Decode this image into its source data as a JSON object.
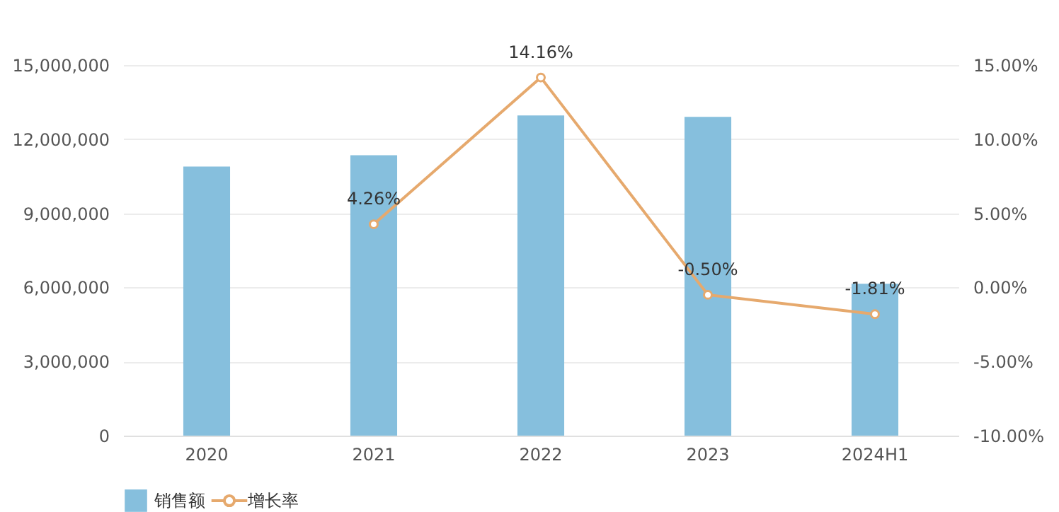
{
  "chart_data": {
    "type": "bar",
    "categories": [
      "2020",
      "2021",
      "2022",
      "2023",
      "2024H1"
    ],
    "series": [
      {
        "name": "销售额",
        "color": "#86bfdd",
        "values": [
          10890000,
          11350000,
          12960000,
          12900000,
          6150000
        ]
      },
      {
        "name": "增长率",
        "type": "line",
        "axis": "y2",
        "color": "#e6a96d",
        "values": [
          null,
          4.26,
          14.16,
          -0.5,
          -1.81
        ],
        "value_labels": [
          null,
          "4.26%",
          "14.16%",
          "-0.50%",
          "-1.81%"
        ]
      }
    ],
    "ylim": [
      0,
      15000000
    ],
    "yticks": [
      {
        "value": 0,
        "label": "0"
      },
      {
        "value": 3000000,
        "label": "3,000,000"
      },
      {
        "value": 6000000,
        "label": "6,000,000"
      },
      {
        "value": 9000000,
        "label": "9,000,000"
      },
      {
        "value": 12000000,
        "label": "12,000,000"
      },
      {
        "value": 15000000,
        "label": "15,000,000"
      }
    ],
    "y2lim": [
      -10,
      15
    ],
    "y2ticks": [
      {
        "value": -10,
        "label": "-10.00%"
      },
      {
        "value": -5,
        "label": "-5.00%"
      },
      {
        "value": 0,
        "label": "0.00%"
      },
      {
        "value": 5,
        "label": "5.00%"
      },
      {
        "value": 10,
        "label": "10.00%"
      },
      {
        "value": 15,
        "label": "15.00%"
      }
    ],
    "grid": "y",
    "legend": "bottom",
    "marker": "circle",
    "line_style": "solid"
  }
}
